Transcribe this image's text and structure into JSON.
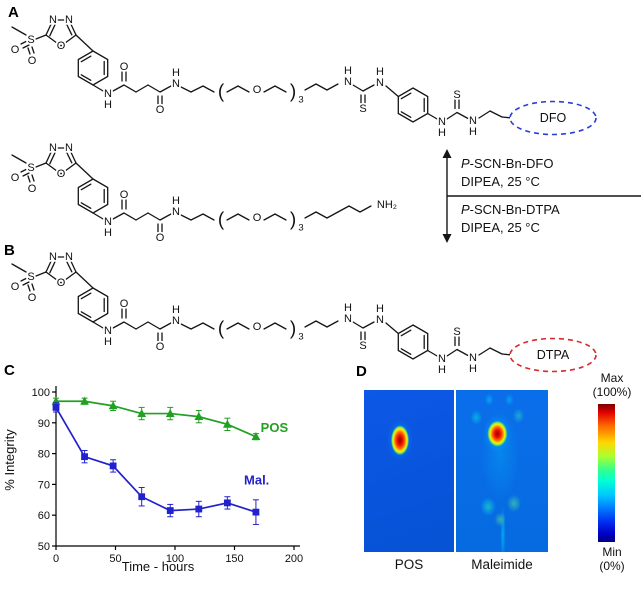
{
  "figure": {
    "panel_a": "A",
    "panel_b": "B",
    "panel_c": "C",
    "panel_d": "D"
  },
  "atoms": {
    "n": "N",
    "h": "H",
    "o": "O",
    "s": "S",
    "nh2": "NH₂",
    "sub3": "3",
    "lparen": "(",
    "rparen": ")"
  },
  "tags": {
    "dfo": "DFO",
    "dtpa": "DTPA"
  },
  "reactions": {
    "p": "P",
    "dfo_rest": "-SCN-Bn-DFO",
    "dtpa_rest": "-SCN-Bn-DTPA",
    "conditions": "DIPEA, 25 °C"
  },
  "chart_data": {
    "type": "line",
    "xlabel": "Time - hours",
    "ylabel": "% Integrity",
    "xlim": [
      0,
      200
    ],
    "ylim": [
      50,
      100
    ],
    "xticks": [
      0,
      50,
      100,
      150,
      200
    ],
    "yticks": [
      50,
      60,
      70,
      80,
      90,
      100
    ],
    "grid": false,
    "legend_position": "inline",
    "series": [
      {
        "name": "POS",
        "color": "#21a121",
        "marker": "triangle",
        "x": [
          0,
          24,
          48,
          72,
          96,
          120,
          144,
          168
        ],
        "y": [
          97,
          97,
          95.5,
          93,
          93,
          92,
          89.5,
          85.5
        ],
        "err": [
          1,
          1,
          1.5,
          2,
          2,
          2,
          2,
          1
        ],
        "label_at": [
          172,
          87
        ]
      },
      {
        "name": "Mal.",
        "color": "#2222cc",
        "marker": "square",
        "x": [
          0,
          24,
          48,
          72,
          96,
          120,
          144,
          168
        ],
        "y": [
          95,
          79,
          76,
          66,
          61.5,
          62,
          64,
          61
        ],
        "err": [
          1.5,
          2,
          2,
          3,
          2,
          2.5,
          2,
          4
        ],
        "label_at": [
          158,
          70
        ]
      }
    ]
  },
  "imaging": {
    "left_caption": "POS",
    "right_caption": "Maleimide",
    "scale_max_label": "Max",
    "scale_max_value": "(100%)",
    "scale_min_label": "Min",
    "scale_min_value": "(0%)"
  }
}
